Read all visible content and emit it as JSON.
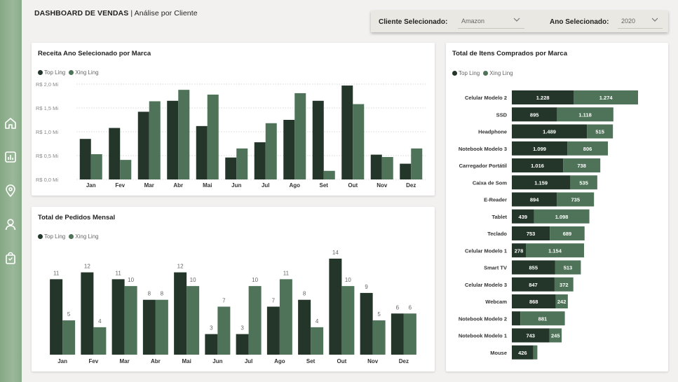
{
  "header": {
    "title_bold": "DASHBOARD DE VENDAS",
    "title_sep": " | ",
    "title_light": "Análise por Cliente"
  },
  "filters": {
    "client_label": "Cliente Selecionado:",
    "client_value": "Amazon",
    "year_label": "Ano Selecionado:",
    "year_value": "2020"
  },
  "nav": [
    {
      "name": "home-icon"
    },
    {
      "name": "report-icon"
    },
    {
      "name": "location-pin-icon"
    },
    {
      "name": "user-icon"
    },
    {
      "name": "shopping-bag-icon"
    }
  ],
  "colors": {
    "top_ling": "#24362a",
    "xing_ling": "#4e7358",
    "sidebar": "#8faf8c"
  },
  "chart_data": [
    {
      "type": "bar",
      "title": "Receita Ano Selecionado por Marca",
      "categories": [
        "Jan",
        "Fev",
        "Mar",
        "Abr",
        "Mai",
        "Jun",
        "Jul",
        "Ago",
        "Set",
        "Out",
        "Nov",
        "Dez"
      ],
      "series": [
        {
          "name": "Top Ling",
          "values": [
            0.85,
            1.08,
            1.42,
            1.65,
            1.12,
            0.46,
            0.78,
            1.25,
            1.65,
            1.97,
            0.52,
            0.33
          ]
        },
        {
          "name": "Xing Ling",
          "values": [
            0.53,
            0.41,
            1.64,
            1.88,
            1.78,
            0.65,
            1.18,
            1.81,
            0.18,
            1.58,
            0.47,
            0.65
          ]
        }
      ],
      "yticks": [
        "R$ 0,0 Mi",
        "R$ 0,5 Mi",
        "R$ 1,0 Mi",
        "R$ 1,5 Mi",
        "R$ 2,0 Mi"
      ],
      "ylim": [
        0,
        2.0
      ],
      "grid": true,
      "legend": "top-left"
    },
    {
      "type": "bar",
      "title": "Total de Pedidos Mensal",
      "categories": [
        "Jan",
        "Fev",
        "Mar",
        "Abr",
        "Mai",
        "Jun",
        "Jul",
        "Ago",
        "Set",
        "Out",
        "Nov",
        "Dez"
      ],
      "series": [
        {
          "name": "Top Ling",
          "values": [
            11,
            12,
            11,
            8,
            12,
            3,
            3,
            7,
            8,
            14,
            9,
            6
          ]
        },
        {
          "name": "Xing Ling",
          "values": [
            5,
            4,
            10,
            8,
            10,
            7,
            10,
            11,
            4,
            10,
            5,
            6
          ]
        }
      ],
      "ylim": [
        0,
        14
      ],
      "data_labels": true,
      "legend": "top-left"
    },
    {
      "type": "bar",
      "orientation": "horizontal",
      "stacked": true,
      "title": "Total de Itens Comprados por Marca",
      "categories": [
        "Celular Modelo 2",
        "SSD",
        "Headphone",
        "Notebook Modelo 3",
        "Carregador Portátil",
        "Caixa de Som",
        "E-Reader",
        "Tablet",
        "Teclado",
        "Celular Modelo 1",
        "Smart TV",
        "Celular Modelo 3",
        "Webcam",
        "Notebook Modelo 2",
        "Notebook Modelo 1",
        "Mouse"
      ],
      "series": [
        {
          "name": "Top Ling",
          "values": [
            1228,
            895,
            1489,
            1099,
            1016,
            1159,
            894,
            439,
            753,
            278,
            855,
            847,
            868,
            170,
            743,
            426
          ],
          "labels": [
            "1.228",
            "895",
            "1.489",
            "1.099",
            "1.016",
            "1.159",
            "894",
            "439",
            "753",
            "278",
            "855",
            "847",
            "868",
            "",
            "743",
            "426"
          ]
        },
        {
          "name": "Xing Ling",
          "values": [
            1274,
            1118,
            515,
            806,
            738,
            535,
            735,
            1098,
            689,
            1154,
            513,
            372,
            242,
            881,
            245,
            80
          ],
          "labels": [
            "1.274",
            "1.118",
            "515",
            "806",
            "738",
            "535",
            "735",
            "1.098",
            "689",
            "1.154",
            "513",
            "372",
            "242",
            "881",
            "245",
            ""
          ]
        }
      ],
      "xlim": [
        0,
        2502
      ],
      "legend": "top-left"
    }
  ]
}
